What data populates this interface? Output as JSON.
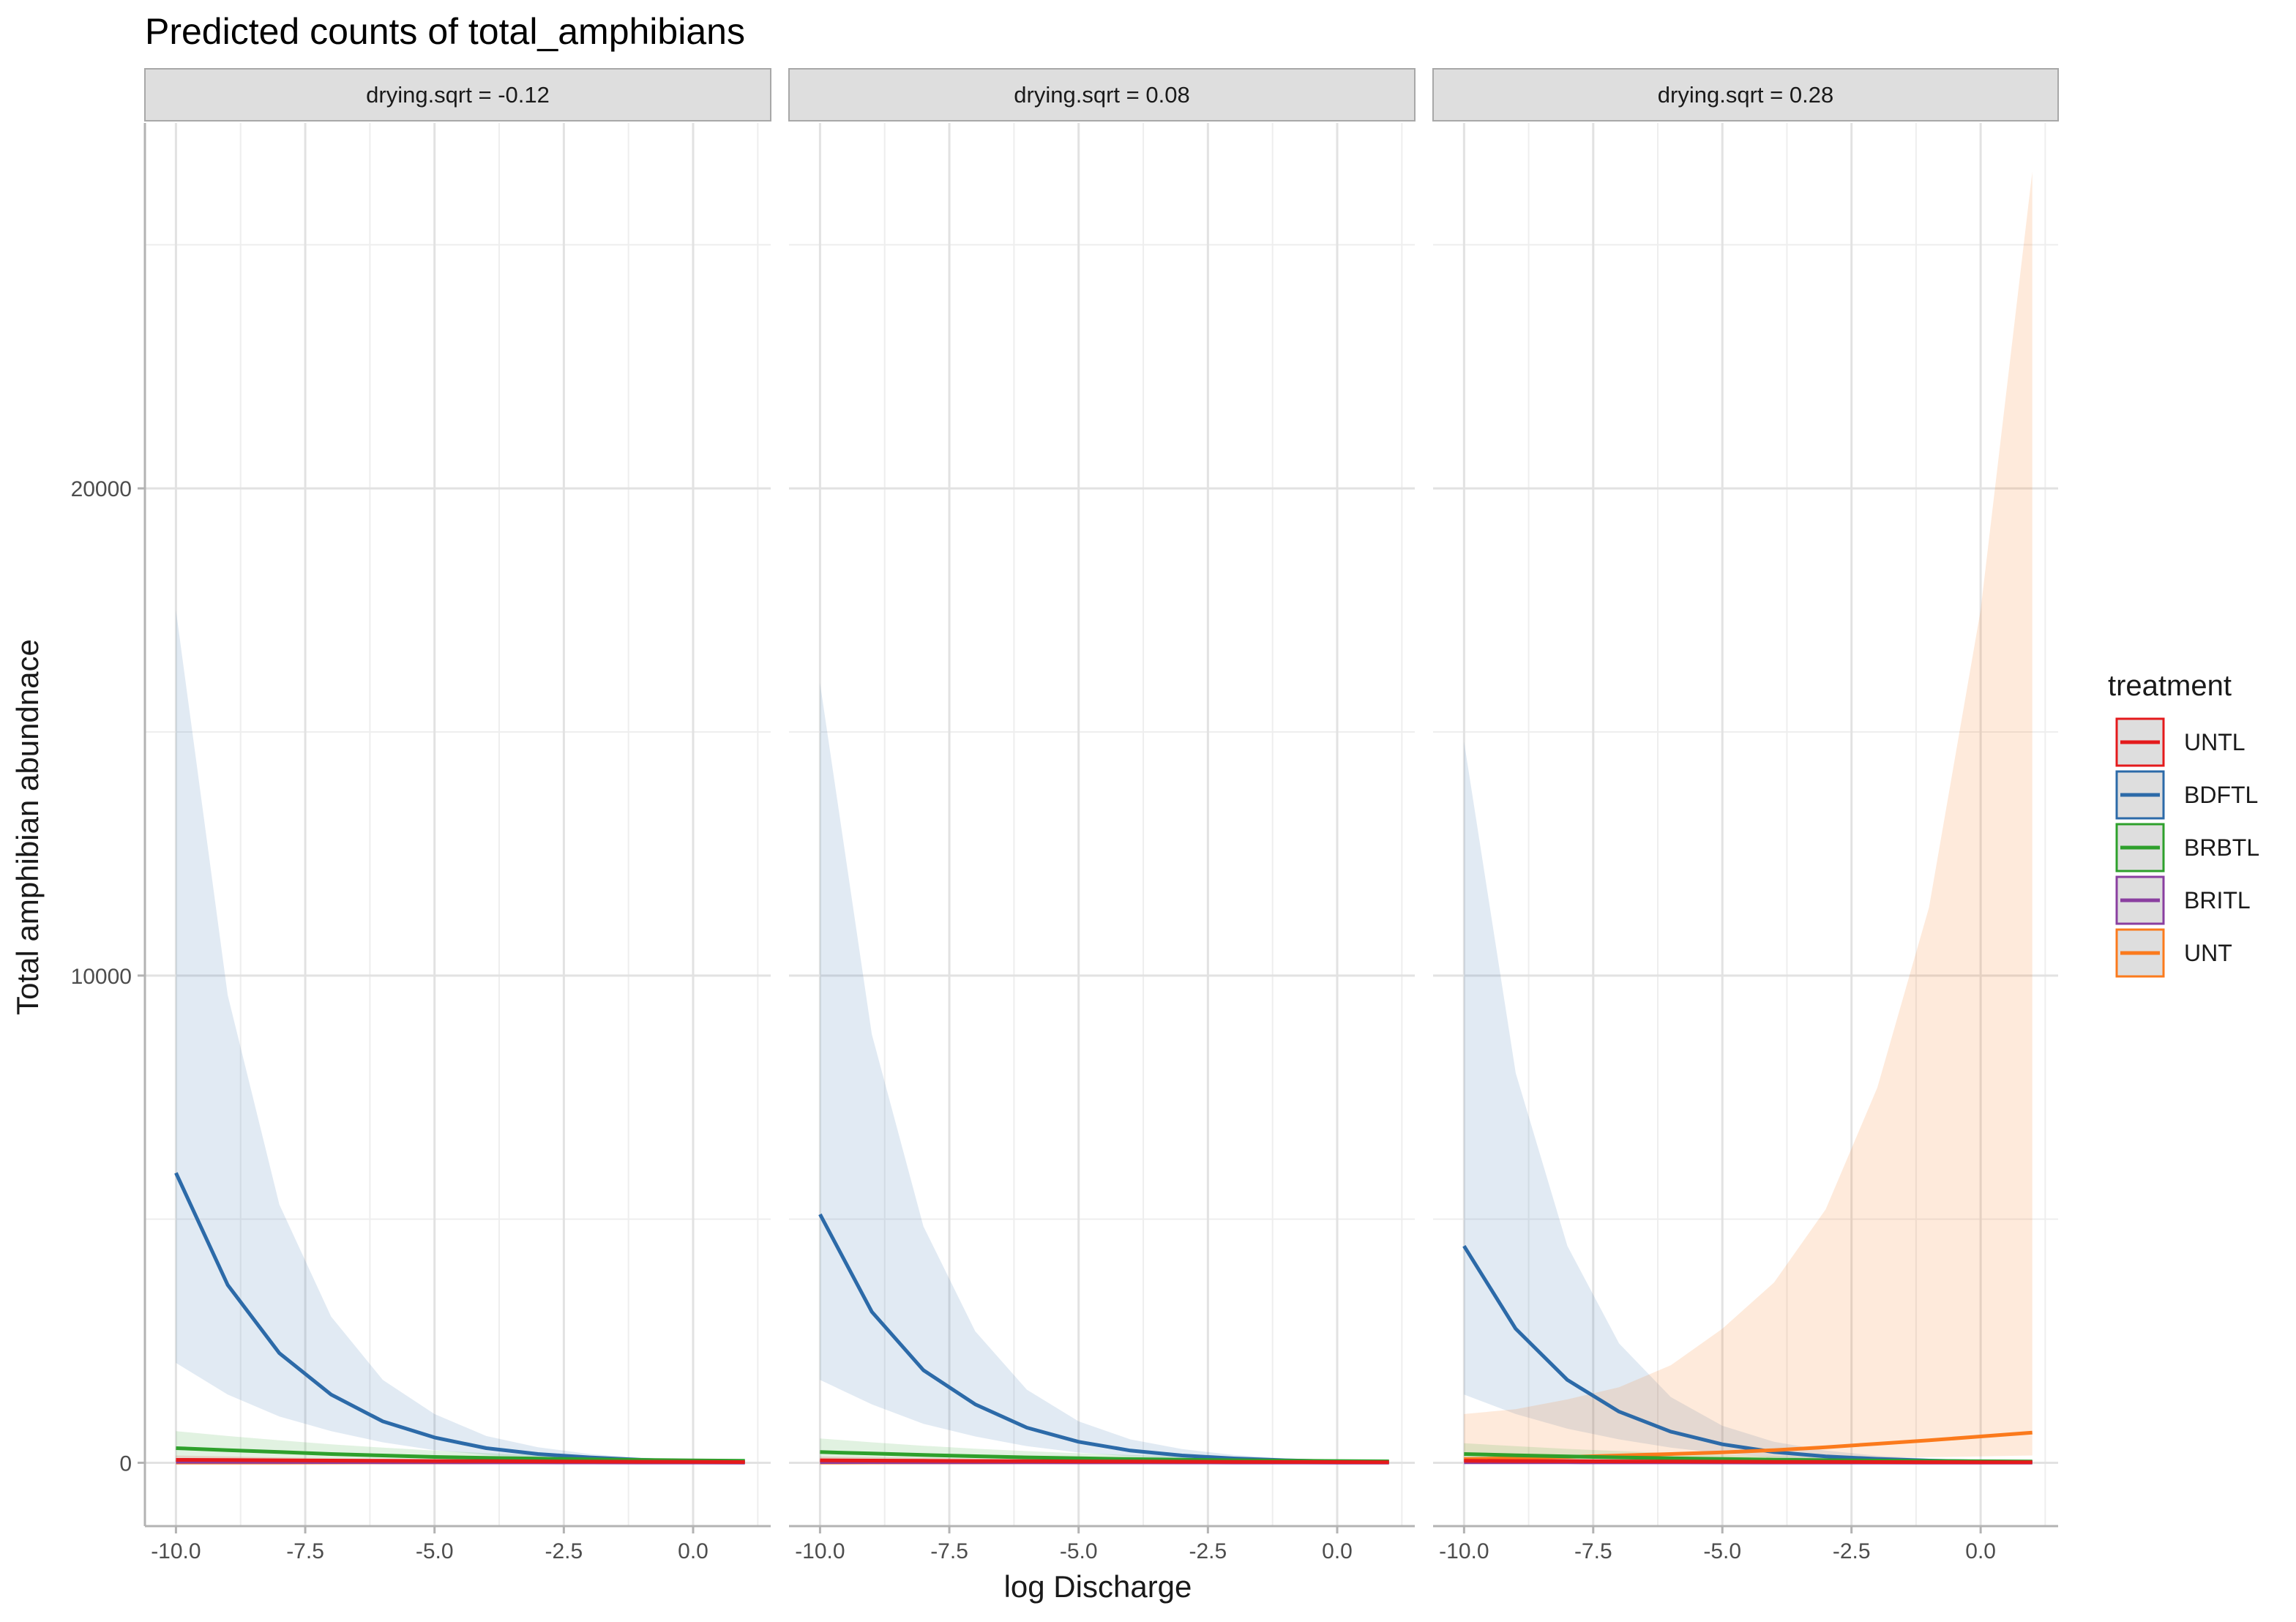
{
  "chart_data": {
    "type": "line",
    "title": "Predicted counts of total_amphibians",
    "xlabel": "log Discharge",
    "ylabel": "Total amphibian abundnace",
    "x_ticks": [
      "-10.0",
      "-7.5",
      "-5.0",
      "-2.5",
      "0.0"
    ],
    "y_ticks": [
      "0",
      "10000",
      "20000"
    ],
    "xlim": [
      -10.6,
      1.5
    ],
    "ylim": [
      -1300,
      27500
    ],
    "grid": true,
    "legend": {
      "title": "treatment",
      "position": "right"
    },
    "x": [
      -10,
      -9,
      -8,
      -7,
      -6,
      -5,
      -4,
      -3,
      -2,
      -1,
      0,
      1
    ],
    "colors": {
      "UNTL": "#e41a1c",
      "BDFTL": "#2c6aa8",
      "BRBTL": "#2ea02c",
      "BRITL": "#8a3fa0",
      "UNT": "#fb7a1c"
    },
    "panels": [
      {
        "strip": "drying.sqrt = -0.12",
        "series": [
          {
            "name": "UNTL",
            "values": [
              60,
              55,
              50,
              45,
              40,
              36,
              32,
              28,
              24,
              20,
              17,
              14
            ],
            "lower": [
              20,
              18,
              16,
              14,
              12,
              10,
              9,
              8,
              7,
              6,
              5,
              4
            ],
            "upper": [
              150,
              130,
              110,
              95,
              80,
              70,
              60,
              52,
              45,
              40,
              35,
              30
            ]
          },
          {
            "name": "BDFTL",
            "values": [
              5950,
              3650,
              2250,
              1400,
              850,
              520,
              300,
              180,
              110,
              60,
              30,
              20
            ],
            "lower": [
              2050,
              1400,
              950,
              650,
              420,
              260,
              160,
              100,
              60,
              35,
              20,
              12
            ],
            "upper": [
              17500,
              9600,
              5300,
              3000,
              1700,
              1000,
              550,
              320,
              180,
              100,
              60,
              40
            ]
          },
          {
            "name": "BRBTL",
            "values": [
              300,
              260,
              220,
              180,
              150,
              120,
              100,
              85,
              70,
              58,
              48,
              40
            ],
            "lower": [
              100,
              90,
              80,
              70,
              60,
              50,
              42,
              35,
              28,
              22,
              18,
              14
            ],
            "upper": [
              650,
              550,
              460,
              380,
              310,
              250,
              200,
              160,
              130,
              105,
              85,
              70
            ]
          },
          {
            "name": "BRITL",
            "values": [
              20,
              18,
              16,
              14,
              12,
              10,
              9,
              8,
              7,
              6,
              5,
              4
            ],
            "lower": [
              5,
              5,
              4,
              4,
              3,
              3,
              2,
              2,
              2,
              2,
              1,
              1
            ],
            "upper": [
              60,
              55,
              50,
              45,
              40,
              35,
              30,
              26,
              22,
              19,
              16,
              14
            ]
          },
          {
            "name": "UNT",
            "values": [
              5,
              5,
              6,
              7,
              8,
              9,
              10,
              11,
              12,
              13,
              14,
              15
            ],
            "lower": [
              1,
              1,
              1,
              2,
              2,
              2,
              3,
              3,
              3,
              4,
              4,
              4
            ],
            "upper": [
              30,
              30,
              32,
              34,
              36,
              38,
              40,
              42,
              44,
              46,
              48,
              50
            ]
          }
        ]
      },
      {
        "strip": "drying.sqrt = 0.08",
        "series": [
          {
            "name": "UNTL",
            "values": [
              50,
              45,
              40,
              36,
              32,
              28,
              25,
              22,
              19,
              16,
              14,
              12
            ],
            "lower": [
              15,
              14,
              12,
              11,
              10,
              9,
              8,
              7,
              6,
              5,
              4,
              3
            ],
            "upper": [
              130,
              115,
              100,
              85,
              72,
              62,
              54,
              47,
              41,
              36,
              31,
              27
            ]
          },
          {
            "name": "BDFTL",
            "values": [
              5100,
              3100,
              1900,
              1200,
              720,
              430,
              250,
              150,
              90,
              50,
              25,
              15
            ],
            "lower": [
              1700,
              1200,
              800,
              540,
              340,
              210,
              130,
              80,
              50,
              30,
              16,
              10
            ],
            "upper": [
              16000,
              8800,
              4850,
              2700,
              1500,
              850,
              480,
              280,
              160,
              90,
              50,
              30
            ]
          },
          {
            "name": "BRBTL",
            "values": [
              220,
              190,
              160,
              135,
              110,
              92,
              76,
              63,
              52,
              43,
              36,
              30
            ],
            "lower": [
              80,
              70,
              60,
              52,
              44,
              37,
              31,
              26,
              21,
              17,
              14,
              11
            ],
            "upper": [
              500,
              420,
              350,
              290,
              240,
              195,
              160,
              130,
              105,
              85,
              70,
              58
            ]
          },
          {
            "name": "BRITL",
            "values": [
              15,
              14,
              12,
              11,
              10,
              9,
              8,
              7,
              6,
              5,
              4,
              4
            ],
            "lower": [
              4,
              4,
              3,
              3,
              3,
              2,
              2,
              2,
              2,
              1,
              1,
              1
            ],
            "upper": [
              50,
              45,
              40,
              36,
              32,
              28,
              25,
              22,
              19,
              16,
              14,
              12
            ]
          },
          {
            "name": "UNT",
            "values": [
              6,
              7,
              8,
              9,
              10,
              11,
              12,
              13,
              14,
              16,
              18,
              20
            ],
            "lower": [
              1,
              1,
              2,
              2,
              2,
              3,
              3,
              3,
              4,
              4,
              5,
              5
            ],
            "upper": [
              35,
              36,
              38,
              40,
              42,
              44,
              46,
              48,
              50,
              54,
              58,
              62
            ]
          }
        ]
      },
      {
        "strip": "drying.sqrt = 0.28",
        "series": [
          {
            "name": "UNTL",
            "values": [
              40,
              36,
              32,
              28,
              25,
              22,
              19,
              17,
              15,
              13,
              11,
              10
            ],
            "lower": [
              12,
              11,
              10,
              9,
              8,
              7,
              6,
              5,
              4,
              4,
              3,
              3
            ],
            "upper": [
              110,
              95,
              82,
              70,
              60,
              52,
              45,
              39,
              34,
              30,
              26,
              23
            ]
          },
          {
            "name": "BDFTL",
            "values": [
              4450,
              2750,
              1700,
              1050,
              640,
              380,
              220,
              130,
              80,
              45,
              25,
              15
            ],
            "lower": [
              1400,
              1000,
              700,
              480,
              310,
              190,
              115,
              70,
              42,
              25,
              15,
              9
            ],
            "upper": [
              14800,
              8000,
              4450,
              2450,
              1350,
              760,
              430,
              250,
              145,
              85,
              50,
              30
            ]
          },
          {
            "name": "BRBTL",
            "values": [
              180,
              155,
              130,
              110,
              92,
              77,
              64,
              53,
              44,
              37,
              31,
              26
            ],
            "lower": [
              60,
              52,
              45,
              39,
              33,
              28,
              24,
              20,
              17,
              14,
              12,
              10
            ],
            "upper": [
              400,
              340,
              285,
              240,
              200,
              165,
              135,
              110,
              90,
              74,
              61,
              50
            ]
          },
          {
            "name": "BRITL",
            "values": [
              12,
              11,
              10,
              9,
              8,
              7,
              6,
              5,
              5,
              4,
              4,
              3
            ],
            "lower": [
              3,
              3,
              3,
              2,
              2,
              2,
              2,
              1,
              1,
              1,
              1,
              1
            ],
            "upper": [
              40,
              36,
              32,
              29,
              26,
              23,
              20,
              18,
              16,
              14,
              12,
              11
            ]
          },
          {
            "name": "UNT",
            "values": [
              75,
              95,
              120,
              150,
              180,
              215,
              260,
              320,
              390,
              460,
              540,
              620
            ],
            "lower": [
              20,
              25,
              32,
              40,
              50,
              60,
              72,
              85,
              100,
              115,
              130,
              150
            ],
            "upper": [
              1000,
              1100,
              1300,
              1550,
              2000,
              2750,
              3700,
              5200,
              7700,
              11400,
              17500,
              26500
            ]
          }
        ]
      }
    ]
  }
}
